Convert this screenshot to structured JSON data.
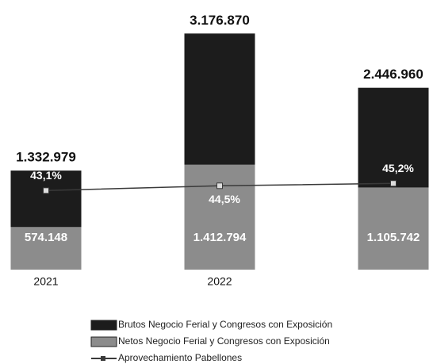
{
  "chart_data": {
    "type": "bar",
    "barmode": "overlay",
    "categories": [
      "2021",
      "2022",
      null
    ],
    "series": [
      {
        "name": "Brutos Negocio Ferial y Congresos con Exposición",
        "color": "#1c1c1c",
        "values": [
          1332979,
          3176870,
          2446960
        ],
        "value_labels": [
          "1.332.979",
          "3.176.870",
          "2.446.960"
        ]
      },
      {
        "name": "Netos Negocio Ferial y Congresos con Exposición",
        "color": "#8c8c8c",
        "values": [
          574148,
          1412794,
          1105742
        ],
        "value_labels": [
          "574.148",
          "1.412.794",
          "1.105.742"
        ]
      },
      {
        "name": "Aprovechamiento Pabellones",
        "type": "line",
        "axis": "y2",
        "color": "#3a3a3a",
        "values": [
          43.1,
          44.5,
          45.2
        ],
        "value_labels": [
          "43,1%",
          "44,5%",
          "45,2%"
        ]
      }
    ],
    "ylim": [
      0,
      3500000
    ],
    "y2lim": [
      20,
      96
    ]
  }
}
